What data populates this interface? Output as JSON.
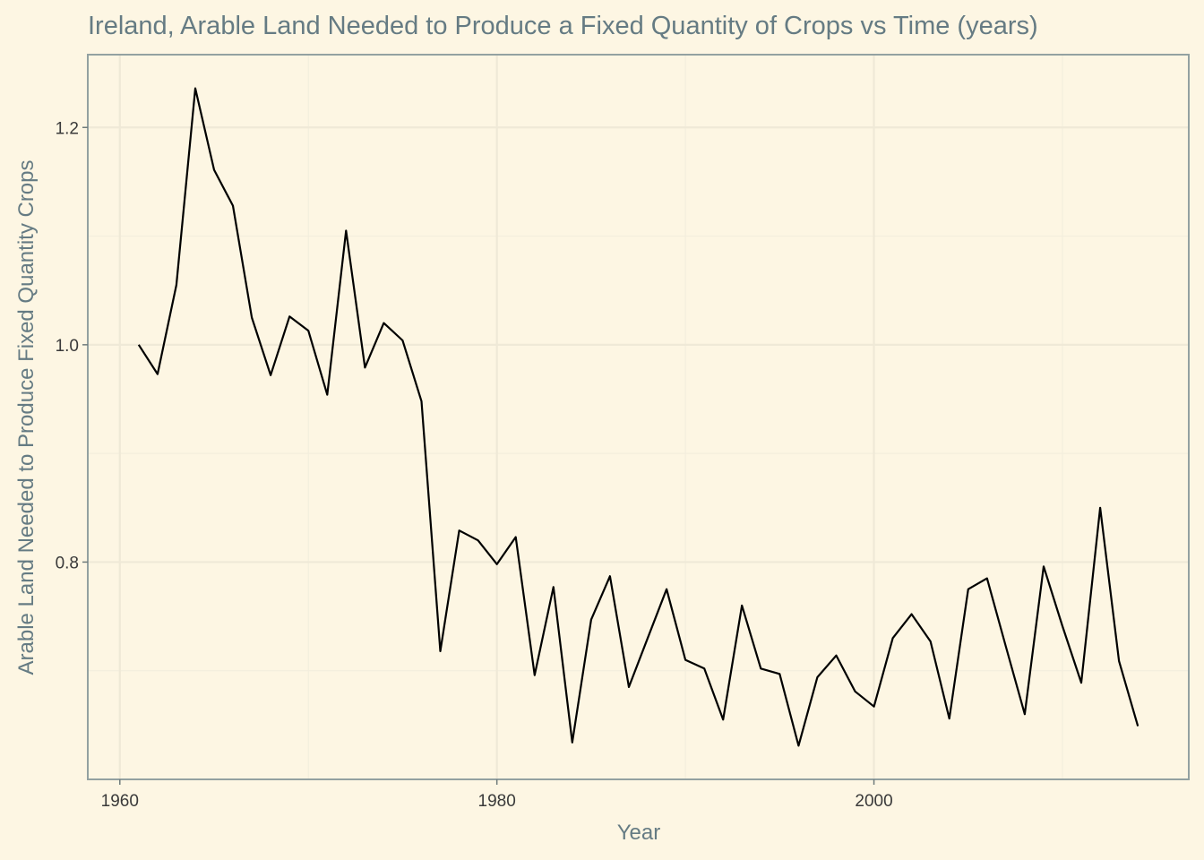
{
  "chart_data": {
    "type": "line",
    "title": "Ireland, Arable Land Needed to Produce a Fixed Quantity of Crops vs Time (years)",
    "xlabel": "Year",
    "ylabel": "Arable Land Needed to Produce Fixed Quantity Crops",
    "xlim": [
      1958.3,
      2016.7
    ],
    "ylim": [
      0.6,
      1.267
    ],
    "x_ticks": [
      1960,
      1980,
      2000
    ],
    "x_tick_labels": [
      "1960",
      "1980",
      "2000"
    ],
    "y_ticks": [
      0.8,
      1.0,
      1.2
    ],
    "y_tick_labels": [
      "0.8",
      "1.0",
      "1.2"
    ],
    "x_minor_ticks": [
      1970,
      1990,
      2010
    ],
    "y_minor_ticks": [
      0.7,
      0.9,
      1.1
    ],
    "grid": true,
    "x": [
      1961,
      1962,
      1963,
      1964,
      1965,
      1966,
      1967,
      1968,
      1969,
      1970,
      1971,
      1972,
      1973,
      1974,
      1975,
      1976,
      1977,
      1978,
      1979,
      1980,
      1981,
      1982,
      1983,
      1984,
      1985,
      1986,
      1987,
      1988,
      1989,
      1990,
      1991,
      1992,
      1993,
      1994,
      1995,
      1996,
      1997,
      1998,
      1999,
      2000,
      2001,
      2002,
      2003,
      2004,
      2005,
      2006,
      2007,
      2008,
      2009,
      2010,
      2011,
      2012,
      2013,
      2014
    ],
    "y": [
      1.0,
      0.973,
      1.055,
      1.236,
      1.161,
      1.128,
      1.025,
      0.972,
      1.026,
      1.013,
      0.954,
      1.105,
      0.979,
      1.02,
      1.004,
      0.948,
      0.718,
      0.829,
      0.82,
      0.798,
      0.823,
      0.696,
      0.777,
      0.634,
      0.747,
      0.787,
      0.685,
      0.73,
      0.775,
      0.71,
      0.702,
      0.655,
      0.76,
      0.702,
      0.697,
      0.631,
      0.694,
      0.714,
      0.681,
      0.667,
      0.73,
      0.752,
      0.727,
      0.656,
      0.775,
      0.785,
      0.722,
      0.66,
      0.796,
      0.741,
      0.689,
      0.85,
      0.709,
      0.649
    ],
    "colors": {
      "background": "#fdf6e3",
      "line": "#000000",
      "title": "#657b83"
    }
  }
}
